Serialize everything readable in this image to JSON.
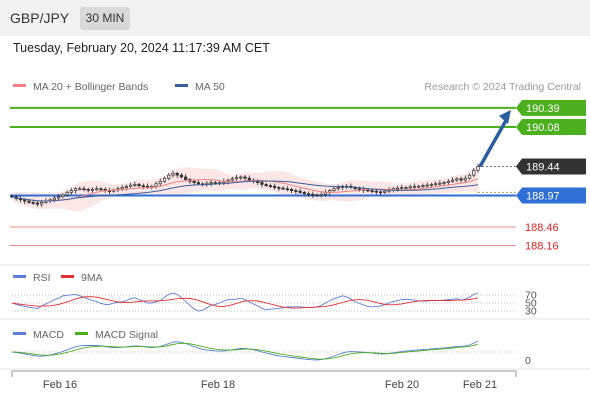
{
  "header": {
    "pair": "GBP/JPY",
    "timeframe": "30 MIN",
    "datetime": "Tuesday, February 20, 2024 11:17:39 AM CET"
  },
  "colors": {
    "up_target": "#4caf1e",
    "pivot": "#2f6fd6",
    "support": "#e02020",
    "price_box": "#333333",
    "arrow": "#2a5d9e",
    "ma20": "#f08080",
    "ma50": "#3a5f9a",
    "rsi": "#5b7fd6",
    "rsi_ma": "#e03030",
    "macd": "#5b7fd6",
    "macd_signal": "#4caf1e"
  },
  "chart_data": {
    "type": "candlestick",
    "legend": [
      {
        "name": "MA 20 + Bollinger Bands",
        "color": "#f08080"
      },
      {
        "name": "MA 50",
        "color": "#3a5f9a"
      }
    ],
    "source": "Research © 2024 Trading Central",
    "ylim": [
      188.0,
      190.5
    ],
    "x_ticks": [
      "Feb 16",
      "Feb 18",
      "Feb 20",
      "Feb 21"
    ],
    "levels": [
      {
        "value": "190.39",
        "type": "resistance"
      },
      {
        "value": "190.08",
        "type": "resistance"
      },
      {
        "value": "189.44",
        "type": "last"
      },
      {
        "value": "188.97",
        "type": "pivot"
      },
      {
        "value": "188.46",
        "type": "support"
      },
      {
        "value": "188.16",
        "type": "support"
      }
    ],
    "close": [
      188.95,
      188.92,
      188.9,
      188.88,
      188.86,
      188.85,
      188.83,
      188.86,
      188.88,
      188.9,
      188.93,
      188.95,
      188.98,
      189.02,
      189.05,
      189.08,
      189.08,
      189.07,
      189.06,
      189.07,
      189.08,
      189.07,
      189.05,
      189.04,
      189.06,
      189.08,
      189.1,
      189.12,
      189.14,
      189.15,
      189.13,
      189.12,
      189.1,
      189.12,
      189.16,
      189.2,
      189.25,
      189.3,
      189.33,
      189.3,
      189.27,
      189.23,
      189.2,
      189.18,
      189.16,
      189.15,
      189.17,
      189.18,
      189.17,
      189.18,
      189.2,
      189.22,
      189.24,
      189.26,
      189.27,
      189.25,
      189.22,
      189.2,
      189.18,
      189.15,
      189.13,
      189.12,
      189.1,
      189.09,
      189.08,
      189.07,
      189.05,
      189.04,
      189.02,
      189.0,
      188.99,
      188.98,
      188.97,
      188.99,
      189.02,
      189.05,
      189.08,
      189.1,
      189.12,
      189.12,
      189.1,
      189.08,
      189.07,
      189.06,
      189.05,
      189.04,
      189.03,
      189.02,
      189.04,
      189.06,
      189.08,
      189.09,
      189.1,
      189.1,
      189.11,
      189.12,
      189.12,
      189.13,
      189.14,
      189.15,
      189.16,
      189.17,
      189.18,
      189.2,
      189.22,
      189.24,
      189.22,
      189.25,
      189.3,
      189.38,
      189.44
    ],
    "rsi_ticks": [
      "70",
      "50",
      "30"
    ],
    "rsi_legend": [
      {
        "name": "RSI",
        "color": "#5b7fd6"
      },
      {
        "name": "9MA",
        "color": "#e03030"
      }
    ],
    "macd_legend": [
      {
        "name": "MACD",
        "color": "#5b7fd6"
      },
      {
        "name": "MACD Signal",
        "color": "#4caf1e"
      }
    ],
    "macd_ticks": [
      "0"
    ]
  }
}
